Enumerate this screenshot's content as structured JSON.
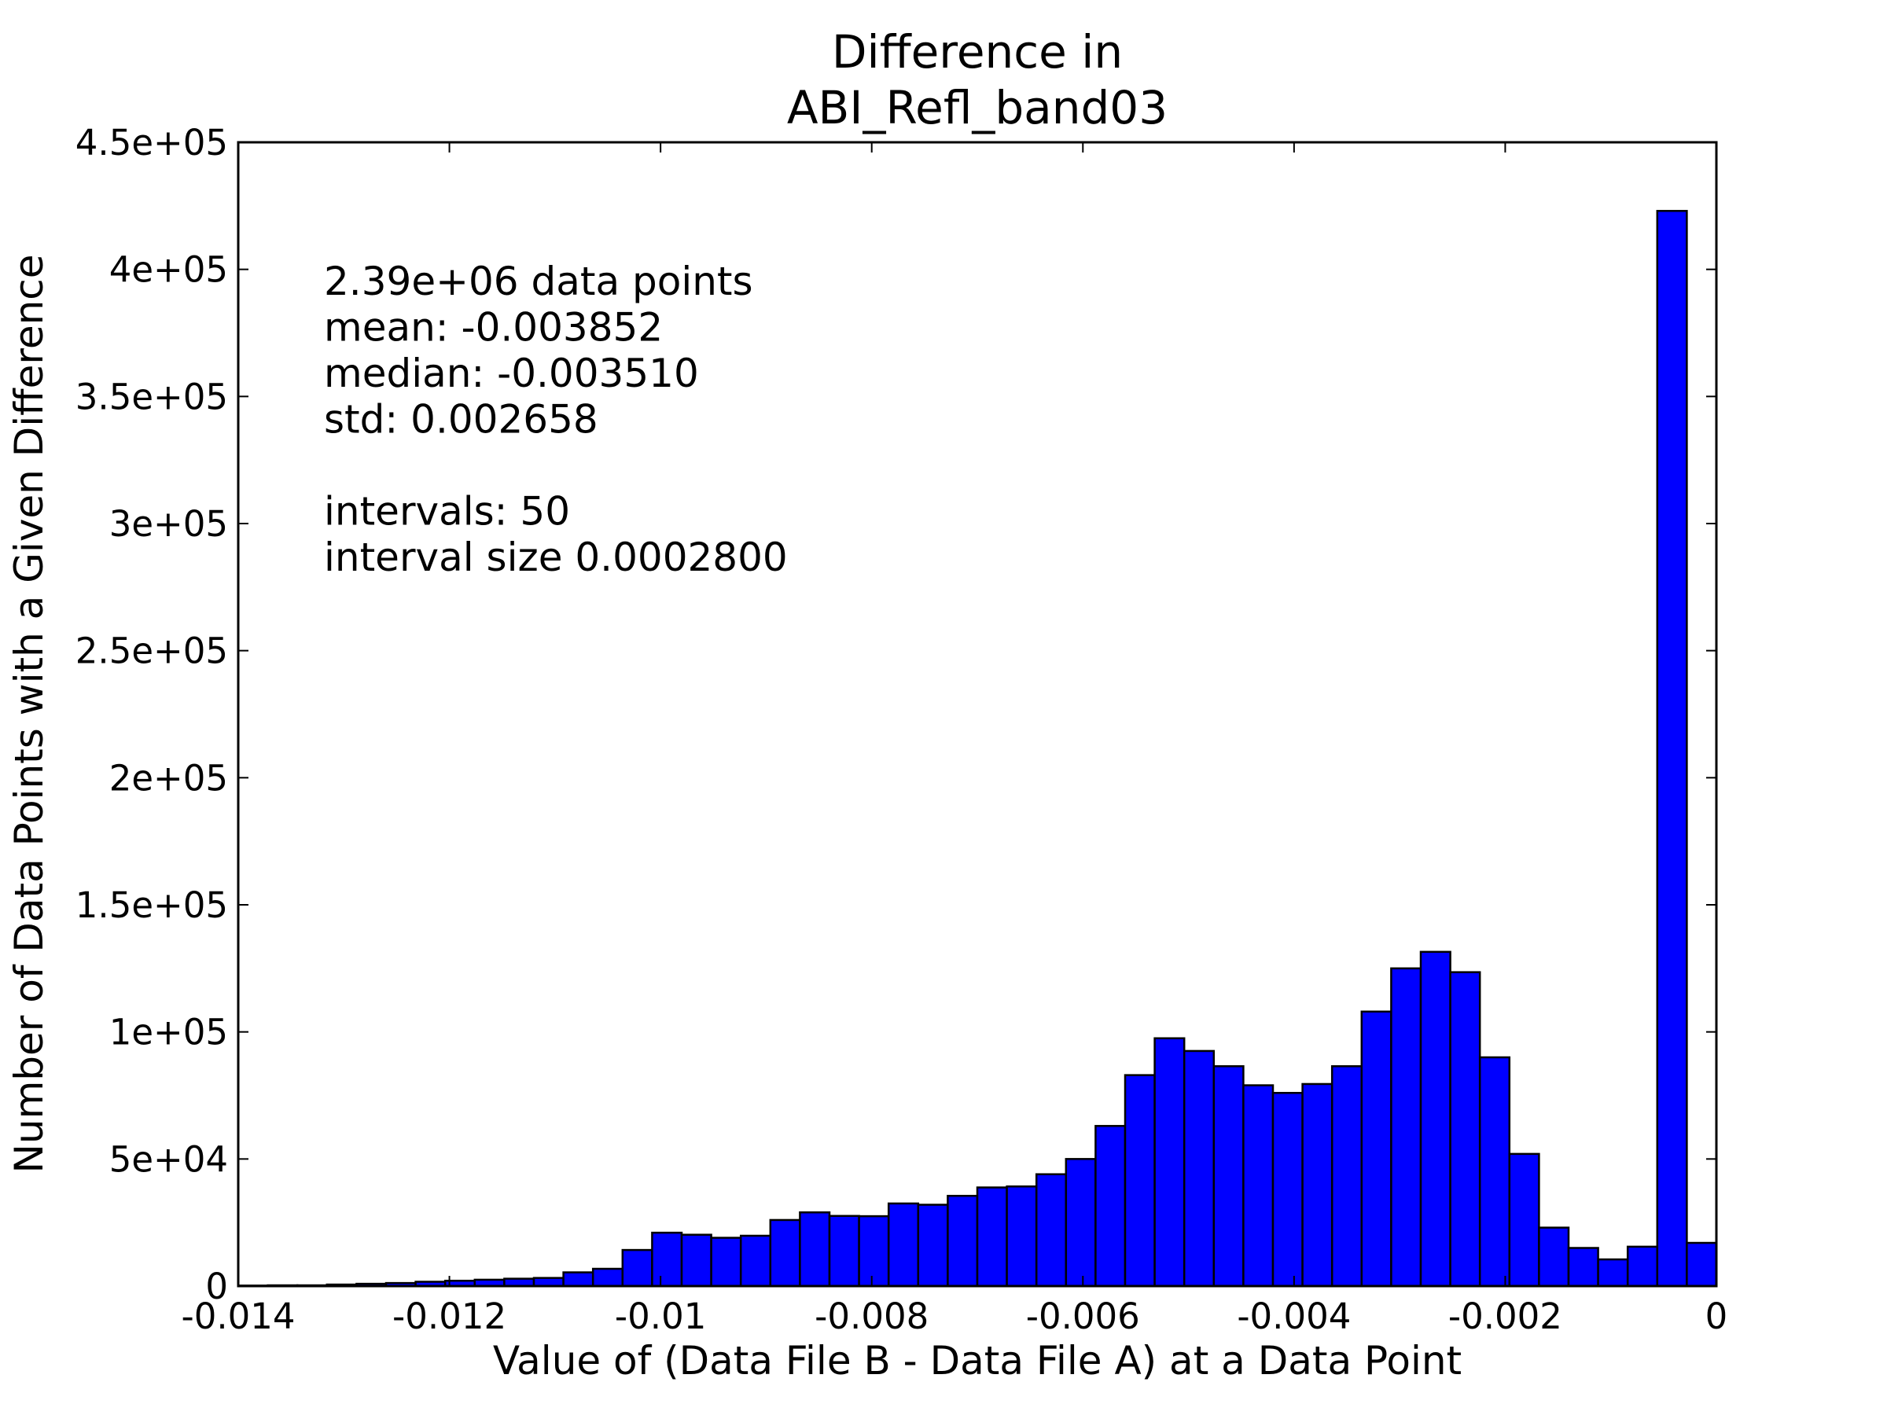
{
  "chart_data": {
    "type": "bar",
    "title_lines": [
      "Difference in",
      "ABI_Refl_band03"
    ],
    "xlabel": "Value of (Data File B - Data File A) at a Data Point",
    "ylabel": "Number of Data Points with a Given Difference",
    "xlim": [
      -0.014,
      0.0
    ],
    "ylim": [
      0,
      450000
    ],
    "x_ticks": [
      {
        "value": -0.014,
        "label": "-0.014"
      },
      {
        "value": -0.012,
        "label": "-0.012"
      },
      {
        "value": -0.01,
        "label": "-0.01"
      },
      {
        "value": -0.008,
        "label": "-0.008"
      },
      {
        "value": -0.006,
        "label": "-0.006"
      },
      {
        "value": -0.004,
        "label": "-0.004"
      },
      {
        "value": -0.002,
        "label": "-0.002"
      },
      {
        "value": 0.0,
        "label": "0"
      }
    ],
    "y_ticks": [
      {
        "value": 0,
        "label": "0"
      },
      {
        "value": 50000,
        "label": "5e+04"
      },
      {
        "value": 100000,
        "label": "1e+05"
      },
      {
        "value": 150000,
        "label": "1.5e+05"
      },
      {
        "value": 200000,
        "label": "2e+05"
      },
      {
        "value": 250000,
        "label": "2.5e+05"
      },
      {
        "value": 300000,
        "label": "3e+05"
      },
      {
        "value": 350000,
        "label": "3.5e+05"
      },
      {
        "value": 400000,
        "label": "4e+05"
      },
      {
        "value": 450000,
        "label": "4.5e+05"
      }
    ],
    "bin_start": -0.014,
    "bin_width": 0.00028,
    "values": [
      200,
      300,
      300,
      600,
      900,
      1200,
      1700,
      2100,
      2500,
      2900,
      3200,
      5400,
      6800,
      14200,
      21000,
      20200,
      19000,
      19800,
      26000,
      29000,
      27600,
      27500,
      32500,
      32000,
      35500,
      38800,
      39200,
      44000,
      50000,
      63000,
      83000,
      97500,
      92500,
      86500,
      79000,
      76000,
      79500,
      86500,
      108000,
      125000,
      131500,
      123500,
      90000,
      52000,
      23000,
      15000,
      10500,
      15500,
      423000,
      17000
    ],
    "bar_color": "#0000ff",
    "stats_lines": [
      "2.39e+06 data points",
      "mean: -0.003852",
      "median: -0.003510",
      "std: 0.002658",
      "",
      "intervals: 50",
      "interval size 0.0002800"
    ]
  }
}
